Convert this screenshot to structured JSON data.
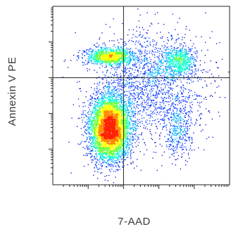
{
  "chart_data": {
    "type": "scatter",
    "title": "",
    "xlabel": "7-AAD",
    "ylabel": "Annexin V PE",
    "x_scale": "log",
    "y_scale": "log",
    "xlim": [
      1,
      100000
    ],
    "ylim": [
      1,
      100000
    ],
    "x_gate": 100,
    "y_gate": 1000,
    "grid": false,
    "legend": "none",
    "density_colormap": [
      "#0000cc",
      "#0033ff",
      "#00aaff",
      "#00ffcc",
      "#66ff33",
      "#ffff00",
      "#ff8800",
      "#ff2200"
    ],
    "populations": [
      {
        "x_center": 40,
        "y_center": 40,
        "x_spread_decades": 0.28,
        "y_spread_decades": 0.45,
        "share": 0.58
      },
      {
        "x_center": 40,
        "y_center": 4000,
        "x_spread_decades": 0.35,
        "y_spread_decades": 0.12,
        "share": 0.12
      },
      {
        "x_center": 3500,
        "y_center": 3000,
        "x_spread_decades": 0.25,
        "y_spread_decades": 0.2,
        "share": 0.07
      },
      {
        "x_center": 3500,
        "y_center": 40,
        "x_spread_decades": 0.2,
        "y_spread_decades": 0.4,
        "share": 0.04
      },
      {
        "x_center": 500,
        "y_center": 600,
        "x_spread_decades": 0.8,
        "y_spread_decades": 0.8,
        "share": 0.19
      }
    ]
  }
}
